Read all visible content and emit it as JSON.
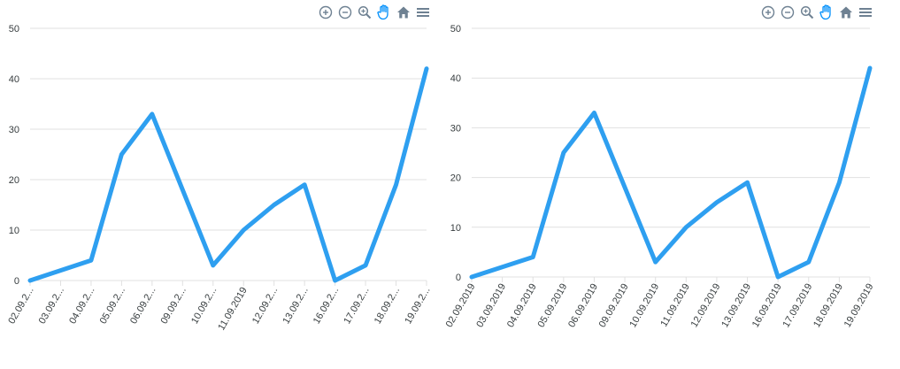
{
  "toolbar": {
    "icons": [
      "zoom-in-icon",
      "zoom-out-icon",
      "magnifier-icon",
      "pan-hand-icon",
      "home-icon",
      "menu-icon"
    ],
    "icon_color": "#6e8192",
    "active_color": "#008ffb"
  },
  "chart_data": [
    {
      "type": "line",
      "categories": [
        "02.09.2...",
        "03.09.2...",
        "04.09.2...",
        "05.09.2...",
        "06.09.2...",
        "09.09.2...",
        "10.09.2...",
        "11.09.2019",
        "12.09.2...",
        "13.09.2...",
        "16.09.2...",
        "17.09.2...",
        "18.09.2...",
        "19.09.2..."
      ],
      "series": [
        {
          "values": [
            0,
            2,
            4,
            25,
            33,
            18,
            3,
            10,
            15,
            19,
            0,
            3,
            19,
            42
          ],
          "color": "#2e9ff0"
        }
      ],
      "yticks": [
        0,
        10,
        20,
        30,
        40,
        50
      ],
      "ylim": [
        0,
        50
      ],
      "grid": true
    },
    {
      "type": "line",
      "categories": [
        "02.09.2019",
        "03.09.2019",
        "04.09.2019",
        "05.09.2019",
        "06.09.2019",
        "09.09.2019",
        "10.09.2019",
        "11.09.2019",
        "12.09.2019",
        "13.09.2019",
        "16.09.2019",
        "17.09.2019",
        "18.09.2019",
        "19.09.2019"
      ],
      "series": [
        {
          "values": [
            0,
            2,
            4,
            25,
            33,
            18,
            3,
            10,
            15,
            19,
            0,
            3,
            19,
            42
          ],
          "color": "#2e9ff0"
        }
      ],
      "yticks": [
        0,
        10,
        20,
        30,
        40,
        50
      ],
      "ylim": [
        0,
        50
      ],
      "grid": true
    }
  ]
}
